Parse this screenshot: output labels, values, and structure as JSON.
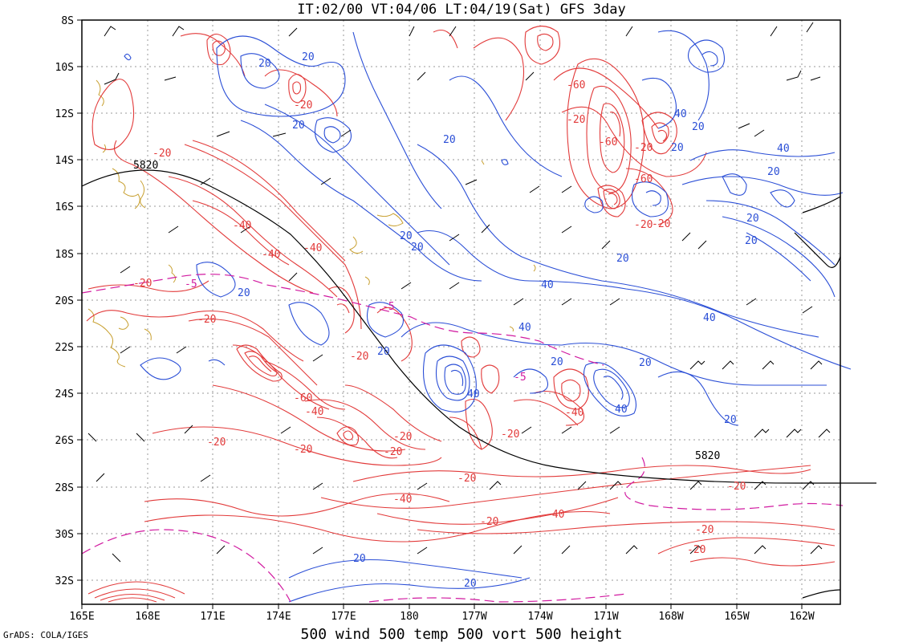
{
  "title": "IT:02/00 VT:04/06 LT:04/19(Sat) GFS 3day",
  "footer": "500 wind 500 temp 500 vort 500 height",
  "credit": "GrADS: COLA/IGES",
  "axes": {
    "lat_labels": [
      "8S",
      "10S",
      "12S",
      "14S",
      "16S",
      "18S",
      "20S",
      "22S",
      "24S",
      "26S",
      "28S",
      "30S",
      "32S"
    ],
    "lon_labels": [
      "165E",
      "168E",
      "171E",
      "174E",
      "177E",
      "180",
      "177W",
      "174W",
      "171W",
      "168W",
      "165W",
      "162W"
    ]
  },
  "colors": {
    "frame": "#000000",
    "grid": "#9a9a9a",
    "vort_positive": "#e23a3a",
    "vort_negative": "#2a4ed6",
    "temp": "#d11aa0",
    "coast": "#c8a030",
    "height": "#000000",
    "wind": "#000000"
  },
  "contour_labels": {
    "height": [
      "5820",
      "5820"
    ],
    "temp": [
      "-5",
      "-5",
      "-5"
    ],
    "vort_negative": [
      "-20",
      "-20",
      "-40",
      "-40",
      "-40",
      "-20",
      "-20",
      "-20",
      "-60",
      "-20",
      "-40",
      "-20",
      "-60",
      "-20",
      "-20",
      "-20",
      "-20",
      "-20",
      "-40",
      "-60",
      "-20",
      "-60",
      "-20",
      "-40",
      "-20",
      "-20",
      "-40",
      "-20",
      "-20",
      "-20"
    ],
    "vort_positive": [
      "20",
      "20",
      "20",
      "20",
      "20",
      "20",
      "40",
      "20",
      "40",
      "20",
      "40",
      "20",
      "20",
      "40",
      "20",
      "20",
      "20",
      "40",
      "20",
      "20",
      "40",
      "20",
      "20",
      "40",
      "20"
    ]
  }
}
